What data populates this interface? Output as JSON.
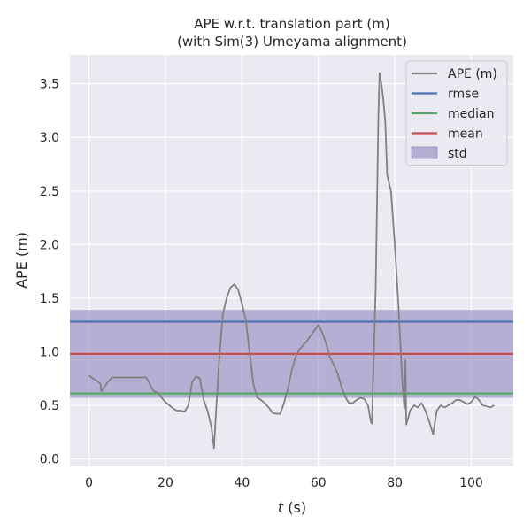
{
  "chart_data": {
    "type": "line",
    "title_line1": "APE w.r.t. translation part (m)",
    "title_line2": "(with Sim(3) Umeyama alignment)",
    "xlabel_var": "t",
    "xlabel_unit": " (s)",
    "ylabel": "APE (m)",
    "xlim": [
      -5,
      111
    ],
    "ylim": [
      -0.07,
      3.77
    ],
    "xticks": [
      0,
      20,
      40,
      60,
      80,
      100
    ],
    "yticks": [
      0.0,
      0.5,
      1.0,
      1.5,
      2.0,
      2.5,
      3.0,
      3.5
    ],
    "ytick_labels": [
      "0.0",
      "0.5",
      "1.0",
      "1.5",
      "2.0",
      "2.5",
      "3.0",
      "3.5"
    ],
    "grid": true,
    "legend_position": "top-right",
    "legend": [
      {
        "label": "APE (m)",
        "kind": "line",
        "color": "#808080"
      },
      {
        "label": "rmse",
        "kind": "line",
        "color": "#4c72b0"
      },
      {
        "label": "median",
        "kind": "line",
        "color": "#55a868"
      },
      {
        "label": "mean",
        "kind": "line",
        "color": "#c44e52"
      },
      {
        "label": "std",
        "kind": "patch",
        "color": "#8172b3"
      }
    ],
    "stats": {
      "rmse": 1.28,
      "median": 0.61,
      "mean": 0.98,
      "std_low": 0.57,
      "std_high": 1.39
    },
    "series": [
      {
        "name": "APE (m)",
        "color": "#808080",
        "x": [
          0,
          1,
          2,
          3,
          3.2,
          4,
          5,
          6,
          8,
          10,
          12,
          15,
          16,
          17,
          18,
          19,
          20,
          21,
          22,
          23,
          24,
          25,
          26,
          27,
          28,
          29,
          30,
          31,
          32,
          32.7,
          33,
          34,
          35,
          36,
          37,
          38,
          39,
          40,
          41,
          42,
          43,
          44,
          45,
          46,
          47,
          48,
          49,
          50,
          51,
          52,
          53,
          54,
          55,
          57,
          59,
          60,
          61,
          62,
          63,
          64,
          65,
          66,
          67,
          68,
          69,
          70,
          71,
          72,
          73,
          73.7,
          74,
          75,
          75.7,
          76,
          76.5,
          77,
          77.5,
          78,
          79,
          80,
          81,
          82,
          82.5,
          82.8,
          83,
          83.5,
          84,
          85,
          86,
          87,
          88,
          89,
          90,
          91,
          92,
          93,
          94,
          95,
          96,
          97,
          98,
          99,
          100,
          101,
          102,
          103,
          104,
          105,
          106
        ],
        "y": [
          0.78,
          0.75,
          0.73,
          0.7,
          0.63,
          0.67,
          0.72,
          0.76,
          0.76,
          0.76,
          0.76,
          0.76,
          0.69,
          0.63,
          0.62,
          0.57,
          0.53,
          0.5,
          0.47,
          0.45,
          0.45,
          0.44,
          0.5,
          0.72,
          0.77,
          0.75,
          0.55,
          0.45,
          0.3,
          0.1,
          0.3,
          0.9,
          1.35,
          1.5,
          1.6,
          1.63,
          1.58,
          1.45,
          1.3,
          1.0,
          0.7,
          0.57,
          0.55,
          0.52,
          0.48,
          0.43,
          0.42,
          0.42,
          0.52,
          0.65,
          0.82,
          0.95,
          1.02,
          1.1,
          1.2,
          1.25,
          1.18,
          1.08,
          0.95,
          0.88,
          0.8,
          0.68,
          0.58,
          0.52,
          0.52,
          0.55,
          0.57,
          0.56,
          0.5,
          0.35,
          0.33,
          1.6,
          3.2,
          3.6,
          3.5,
          3.35,
          3.15,
          2.65,
          2.5,
          2.0,
          1.4,
          0.7,
          0.47,
          0.92,
          0.32,
          0.38,
          0.45,
          0.5,
          0.48,
          0.52,
          0.45,
          0.35,
          0.23,
          0.45,
          0.5,
          0.48,
          0.5,
          0.52,
          0.55,
          0.55,
          0.53,
          0.51,
          0.53,
          0.58,
          0.55,
          0.5,
          0.49,
          0.48,
          0.5
        ]
      }
    ]
  }
}
